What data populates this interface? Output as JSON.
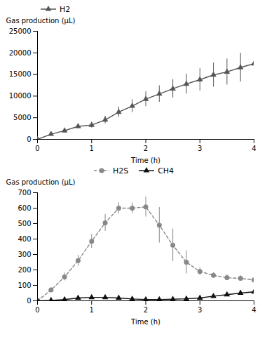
{
  "chart_data": [
    {
      "type": "line",
      "xlabel": "Time (h)",
      "ylabel": "Gas production (μL)",
      "x": [
        0,
        0.25,
        0.5,
        0.75,
        1.0,
        1.25,
        1.5,
        1.75,
        2.0,
        2.25,
        2.5,
        2.75,
        3.0,
        3.25,
        3.5,
        3.75,
        4.0
      ],
      "series": [
        {
          "name": "H2",
          "color": "#555555",
          "marker": "triangle",
          "line_style": "solid",
          "values": [
            0,
            1200,
            2000,
            3000,
            3300,
            4500,
            6300,
            7700,
            9300,
            10500,
            11700,
            12800,
            13800,
            14900,
            15600,
            16600,
            17500
          ],
          "errors": [
            0,
            200,
            350,
            550,
            650,
            850,
            1200,
            1500,
            1700,
            1900,
            2100,
            2300,
            2600,
            2800,
            3000,
            3300,
            3400
          ]
        }
      ],
      "xlim": [
        0,
        4
      ],
      "xticks": [
        0,
        1,
        2,
        3,
        4
      ],
      "ylim": [
        0,
        25000
      ],
      "yticks": [
        0,
        5000,
        10000,
        15000,
        20000,
        25000
      ],
      "legend": "upper left",
      "grid": false
    },
    {
      "type": "line",
      "xlabel": "Time (h)",
      "ylabel": "Gas production (μL)",
      "x": [
        0,
        0.25,
        0.5,
        0.75,
        1.0,
        1.25,
        1.5,
        1.75,
        2.0,
        2.25,
        2.5,
        2.75,
        3.0,
        3.25,
        3.5,
        3.75,
        4.0
      ],
      "series": [
        {
          "name": "H2S",
          "color": "#888888",
          "marker": "circle",
          "line_style": "dashed",
          "values": [
            0,
            70,
            155,
            260,
            385,
            505,
            600,
            600,
            608,
            490,
            360,
            250,
            190,
            165,
            150,
            145,
            135
          ],
          "errors": [
            0,
            15,
            25,
            35,
            45,
            55,
            35,
            35,
            65,
            115,
            105,
            75,
            25,
            18,
            18,
            18,
            18
          ]
        },
        {
          "name": "CH4",
          "color": "#111111",
          "marker": "triangle",
          "line_style": "solid",
          "values": [
            0,
            3,
            8,
            18,
            22,
            22,
            18,
            12,
            8,
            8,
            10,
            13,
            18,
            30,
            40,
            50,
            58
          ],
          "errors": [
            0,
            3,
            4,
            8,
            9,
            9,
            7,
            4,
            4,
            4,
            4,
            4,
            8,
            12,
            12,
            13,
            13
          ]
        }
      ],
      "xlim": [
        0,
        4
      ],
      "xticks": [
        0,
        1,
        2,
        3,
        4
      ],
      "ylim": [
        0,
        700
      ],
      "yticks": [
        0,
        100,
        200,
        300,
        400,
        500,
        600,
        700
      ],
      "legend": "upper center",
      "grid": false
    }
  ]
}
